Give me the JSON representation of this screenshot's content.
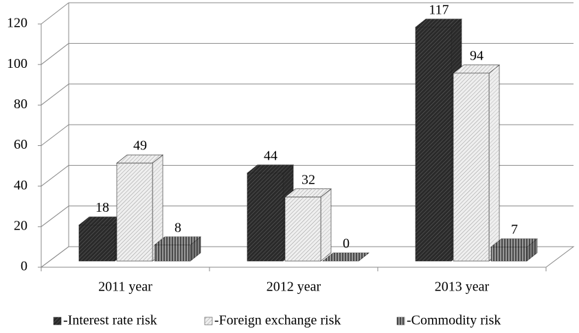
{
  "chart_data": {
    "type": "bar3d",
    "categories": [
      "2011 year",
      "2012 year",
      "2013 year"
    ],
    "series": [
      {
        "name": "-Interest rate risk",
        "color": "#2a2a2a",
        "values": [
          18,
          44,
          117
        ]
      },
      {
        "name": "-Foreign exchange risk",
        "color": "#efefef",
        "values": [
          49,
          32,
          94
        ]
      },
      {
        "name": "-Commodity risk",
        "color": "#4a4a4a",
        "values": [
          8,
          0,
          7
        ]
      }
    ],
    "ylim": [
      0,
      120
    ],
    "yticks": [
      0,
      20,
      40,
      60,
      80,
      100,
      120
    ],
    "grid": true,
    "legend": "bottom"
  }
}
